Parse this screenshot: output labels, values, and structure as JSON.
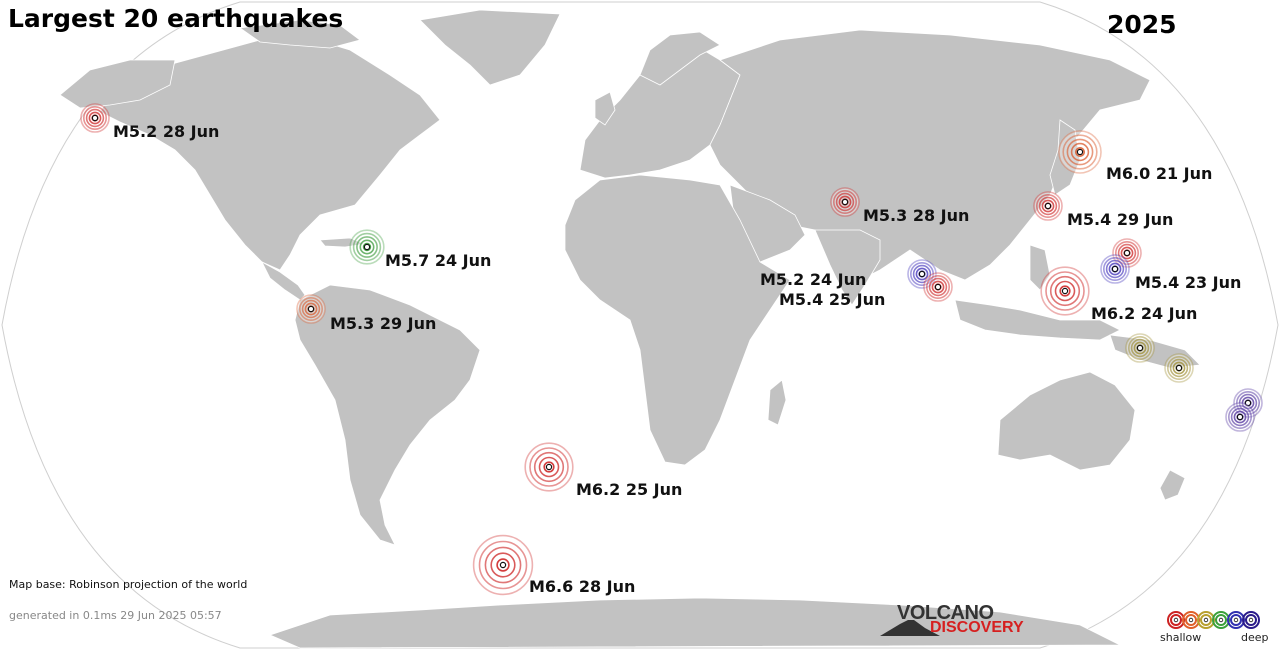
{
  "header": {
    "title": "Largest 20 earthquakes",
    "year": "2025"
  },
  "map": {
    "credit": "Map base: Robinson projection of the world",
    "generated": "generated in 0.1ms 29 Jun 2025 05:57"
  },
  "logo": {
    "top": "VOLCANO",
    "bottom": "DISCOVERY"
  },
  "legend": {
    "shallow_label": "shallow",
    "deep_label": "deep",
    "colors": [
      "#cc2222",
      "#e0602a",
      "#b8a02e",
      "#3aa03a",
      "#3030b0",
      "#2a1a8a"
    ]
  },
  "depth_colors": {
    "red": "#cc2020",
    "orange": "#d9582a",
    "olive": "#9a8a2a",
    "green": "#3a9a3a",
    "blue": "#3a2ab8",
    "purple": "#4a2a9a"
  },
  "quakes": [
    {
      "label": "M5.2 28 Jun",
      "magnitude": 5.2,
      "depth_class": "red"
    },
    {
      "label": "M5.7 24 Jun",
      "magnitude": 5.7,
      "depth_class": "green"
    },
    {
      "label": "M5.3 29 Jun",
      "magnitude": 5.3,
      "depth_class": "orange"
    },
    {
      "label": "M6.2 25 Jun",
      "magnitude": 6.2,
      "depth_class": "red"
    },
    {
      "label": "M6.6 28 Jun",
      "magnitude": 6.6,
      "depth_class": "red"
    },
    {
      "label": "M5.3 28 Jun",
      "magnitude": 5.3,
      "depth_class": "red"
    },
    {
      "label": "M5.2 24 Jun",
      "magnitude": 5.2,
      "depth_class": "blue"
    },
    {
      "label": "M5.4 25 Jun",
      "magnitude": 5.4,
      "depth_class": "red"
    },
    {
      "label": "M6.0 21 Jun",
      "magnitude": 6.0,
      "depth_class": "orange"
    },
    {
      "label": "M5.4 29 Jun",
      "magnitude": 5.4,
      "depth_class": "red"
    },
    {
      "label": "M5.4 23 Jun",
      "magnitude": 5.4,
      "depth_class": "blue"
    },
    {
      "label": "M6.2 24 Jun",
      "magnitude": 6.2,
      "depth_class": "red"
    }
  ]
}
